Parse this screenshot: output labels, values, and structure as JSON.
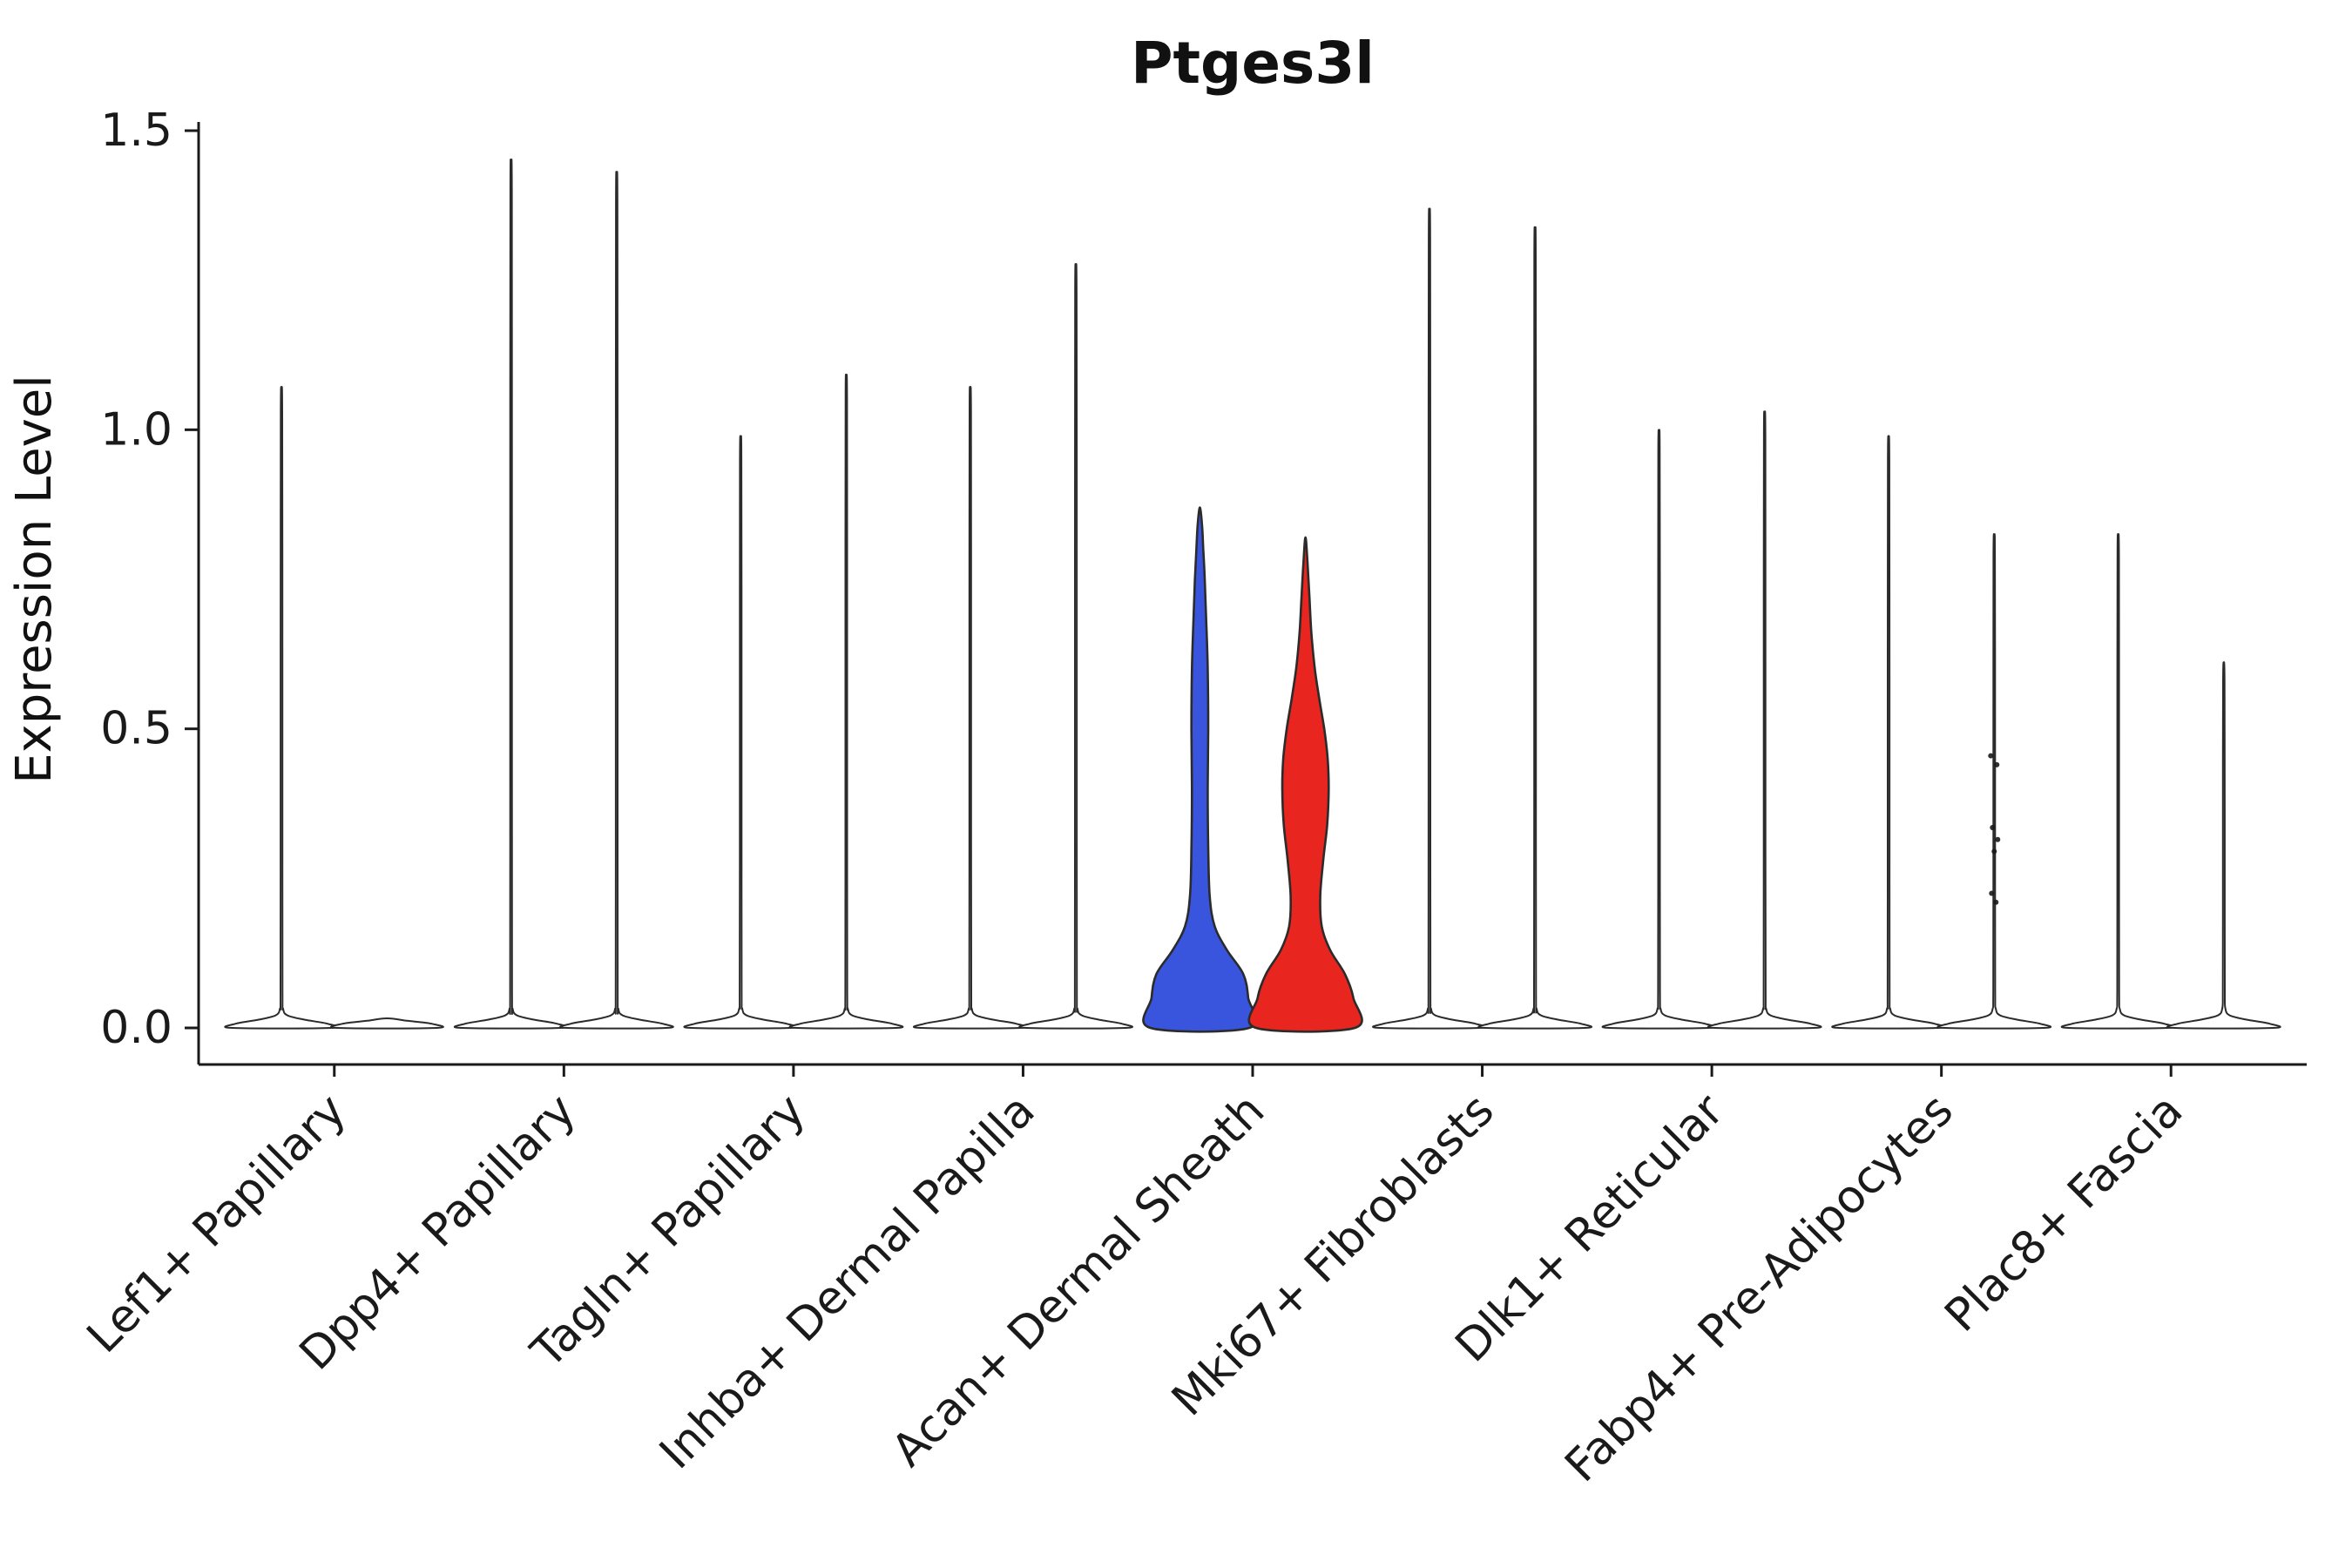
{
  "chart_data": {
    "type": "violin",
    "title": "Ptges3l",
    "ylabel": "Expression Level",
    "xlabel": "",
    "ylim": [
      0,
      1.5
    ],
    "grid": false,
    "legend": "none",
    "outline_color": "#2b2b2b",
    "axis_color": "#1a1a1a",
    "yticks": [
      {
        "label": "0.0",
        "value": 0.0
      },
      {
        "label": "0.5",
        "value": 0.5
      },
      {
        "label": "1.0",
        "value": 1.0
      },
      {
        "label": "1.5",
        "value": 1.5
      }
    ],
    "categories": [
      "Lef1+ Papillary",
      "Dpp4+ Papillary",
      "Tagln+ Papillary",
      "Inhba+ Dermal Papilla",
      "Acan+ Dermal Sheath",
      "Mki67+ Fibroblasts",
      "Dlk1+ Reticular",
      "Fabp4+ Pre-Adipocytes",
      "Plac8+ Fascia"
    ],
    "violins": [
      {
        "category": "Lef1+ Papillary",
        "side": "left",
        "max": 1.06,
        "fill": "#ffffff"
      },
      {
        "category": "Lef1+ Papillary",
        "side": "right",
        "max": 0.0,
        "fill": "#ffffff"
      },
      {
        "category": "Dpp4+ Papillary",
        "side": "left",
        "max": 1.43,
        "fill": "#ffffff"
      },
      {
        "category": "Dpp4+ Papillary",
        "side": "right",
        "max": 1.41,
        "fill": "#ffffff"
      },
      {
        "category": "Tagln+ Papillary",
        "side": "left",
        "max": 0.98,
        "fill": "#ffffff"
      },
      {
        "category": "Tagln+ Papillary",
        "side": "right",
        "max": 1.08,
        "fill": "#ffffff"
      },
      {
        "category": "Inhba+ Dermal Papilla",
        "side": "left",
        "max": 1.06,
        "fill": "#ffffff"
      },
      {
        "category": "Inhba+ Dermal Papilla",
        "side": "right",
        "max": 1.26,
        "fill": "#ffffff"
      },
      {
        "category": "Acan+ Dermal Sheath",
        "side": "left",
        "max": 0.87,
        "fill": "#3a55dd",
        "profile": [
          [
            0,
            1.0
          ],
          [
            0.05,
            0.98
          ],
          [
            0.09,
            0.88
          ],
          [
            0.13,
            0.55
          ],
          [
            0.17,
            0.3
          ],
          [
            0.22,
            0.2
          ],
          [
            0.3,
            0.17
          ],
          [
            0.4,
            0.16
          ],
          [
            0.5,
            0.17
          ],
          [
            0.6,
            0.16
          ],
          [
            0.68,
            0.13
          ],
          [
            0.75,
            0.1
          ],
          [
            0.8,
            0.07
          ],
          [
            0.84,
            0.045
          ],
          [
            0.87,
            0.0
          ]
        ]
      },
      {
        "category": "Acan+ Dermal Sheath",
        "side": "right",
        "max": 0.82,
        "fill": "#e8251e",
        "profile": [
          [
            0,
            1.0
          ],
          [
            0.05,
            0.97
          ],
          [
            0.09,
            0.8
          ],
          [
            0.13,
            0.5
          ],
          [
            0.17,
            0.33
          ],
          [
            0.22,
            0.3
          ],
          [
            0.28,
            0.36
          ],
          [
            0.34,
            0.44
          ],
          [
            0.4,
            0.47
          ],
          [
            0.45,
            0.45
          ],
          [
            0.5,
            0.38
          ],
          [
            0.55,
            0.28
          ],
          [
            0.6,
            0.19
          ],
          [
            0.66,
            0.12
          ],
          [
            0.72,
            0.08
          ],
          [
            0.78,
            0.04
          ],
          [
            0.82,
            0.0
          ]
        ]
      },
      {
        "category": "Mki67+ Fibroblasts",
        "side": "left",
        "max": 1.35,
        "fill": "#ffffff"
      },
      {
        "category": "Mki67+ Fibroblasts",
        "side": "right",
        "max": 1.32,
        "fill": "#ffffff"
      },
      {
        "category": "Dlk1+ Reticular",
        "side": "left",
        "max": 0.99,
        "fill": "#ffffff"
      },
      {
        "category": "Dlk1+ Reticular",
        "side": "right",
        "max": 1.02,
        "fill": "#ffffff"
      },
      {
        "category": "Fabp4+ Pre-Adipocytes",
        "side": "left",
        "max": 0.98,
        "fill": "#ffffff"
      },
      {
        "category": "Fabp4+ Pre-Adipocytes",
        "side": "right",
        "max": 0.82,
        "fill": "#ffffff",
        "points": [
          0.455,
          0.44,
          0.335,
          0.315,
          0.295,
          0.225,
          0.21
        ]
      },
      {
        "category": "Plac8+ Fascia",
        "side": "left",
        "max": 0.82,
        "fill": "#ffffff"
      },
      {
        "category": "Plac8+ Fascia",
        "side": "right",
        "max": 0.61,
        "fill": "#ffffff"
      }
    ]
  }
}
